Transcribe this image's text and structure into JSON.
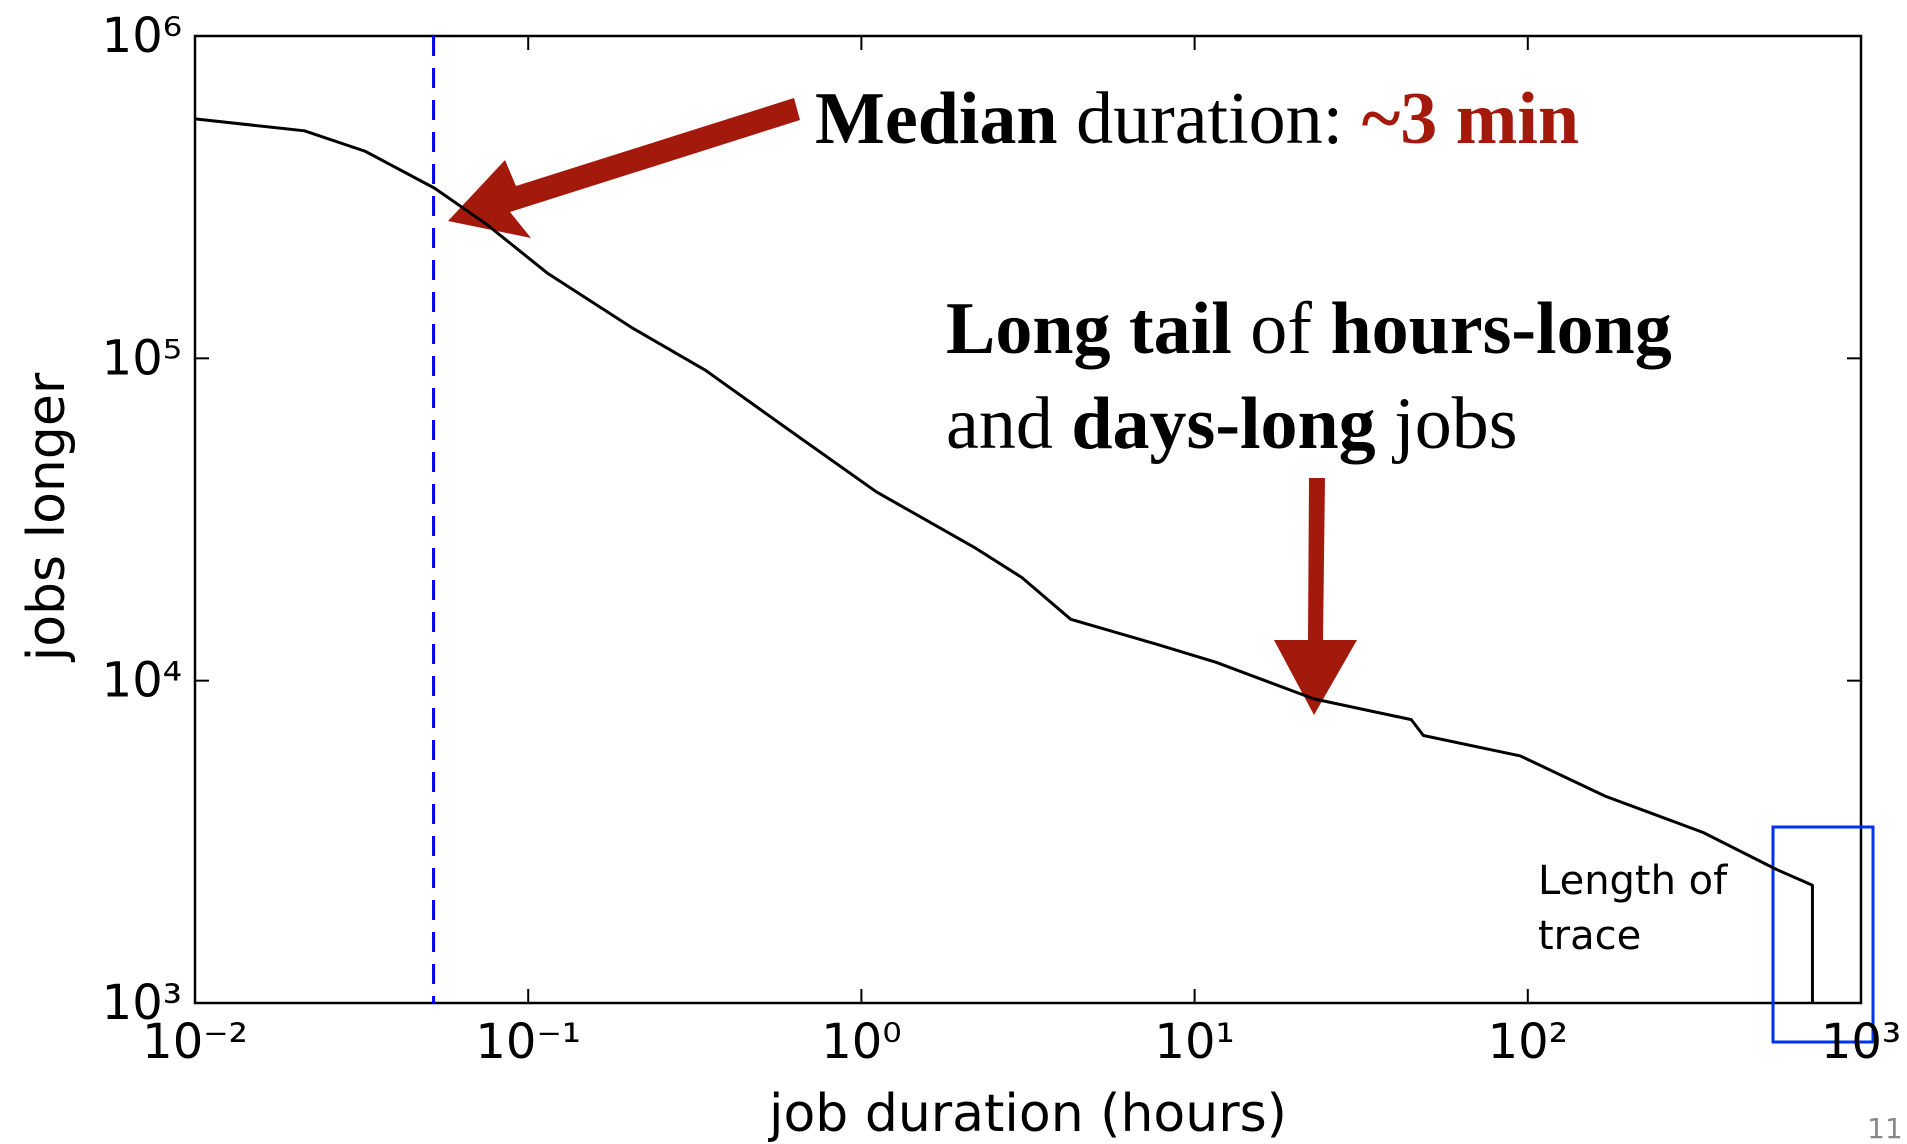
{
  "chart_data": {
    "type": "line",
    "xlabel": "job duration (hours)",
    "ylabel": "jobs longer",
    "xscale": "log",
    "yscale": "log",
    "xlim": [
      0.01,
      1000
    ],
    "ylim": [
      1000,
      1000000
    ],
    "xticks": [
      {
        "value": 0.01,
        "label": "10⁻²"
      },
      {
        "value": 0.1,
        "label": "10⁻¹"
      },
      {
        "value": 1,
        "label": "10⁰"
      },
      {
        "value": 10,
        "label": "10¹"
      },
      {
        "value": 100,
        "label": "10²"
      },
      {
        "value": 1000,
        "label": "10³"
      }
    ],
    "yticks": [
      {
        "value": 1000,
        "label": "10³"
      },
      {
        "value": 10000,
        "label": "10⁴"
      },
      {
        "value": 100000,
        "label": "10⁵"
      },
      {
        "value": 1000000,
        "label": "10⁶"
      }
    ],
    "series": [
      {
        "color": "#000000",
        "x": [
          0.01,
          0.0213,
          0.0324,
          0.0524,
          0.0752,
          0.114,
          0.206,
          0.341,
          0.614,
          1.11,
          2.17,
          3.03,
          4.25,
          7.64,
          11.6,
          22.8,
          44.7,
          48.6,
          95,
          171,
          336,
          556,
          715,
          715
        ],
        "values": [
          553000,
          508000,
          439000,
          337000,
          260000,
          184000,
          124000,
          91700,
          59400,
          38500,
          26000,
          20900,
          15500,
          13000,
          11400,
          8780,
          7570,
          6760,
          5840,
          4380,
          3380,
          2600,
          2320,
          1000
        ]
      }
    ],
    "median_line": {
      "x": 0.052,
      "color": "#0000ee"
    },
    "annotations": [
      {
        "parts": [
          "Median",
          " duration: ",
          "~3 min"
        ]
      },
      {
        "parts": [
          "Long tail",
          " of ",
          "hours-long"
        ]
      },
      {
        "parts": [
          "and ",
          "days-long",
          " jobs"
        ]
      },
      {
        "parts": [
          "Length of"
        ]
      },
      {
        "parts": [
          "trace"
        ]
      }
    ]
  },
  "page_number": "11"
}
